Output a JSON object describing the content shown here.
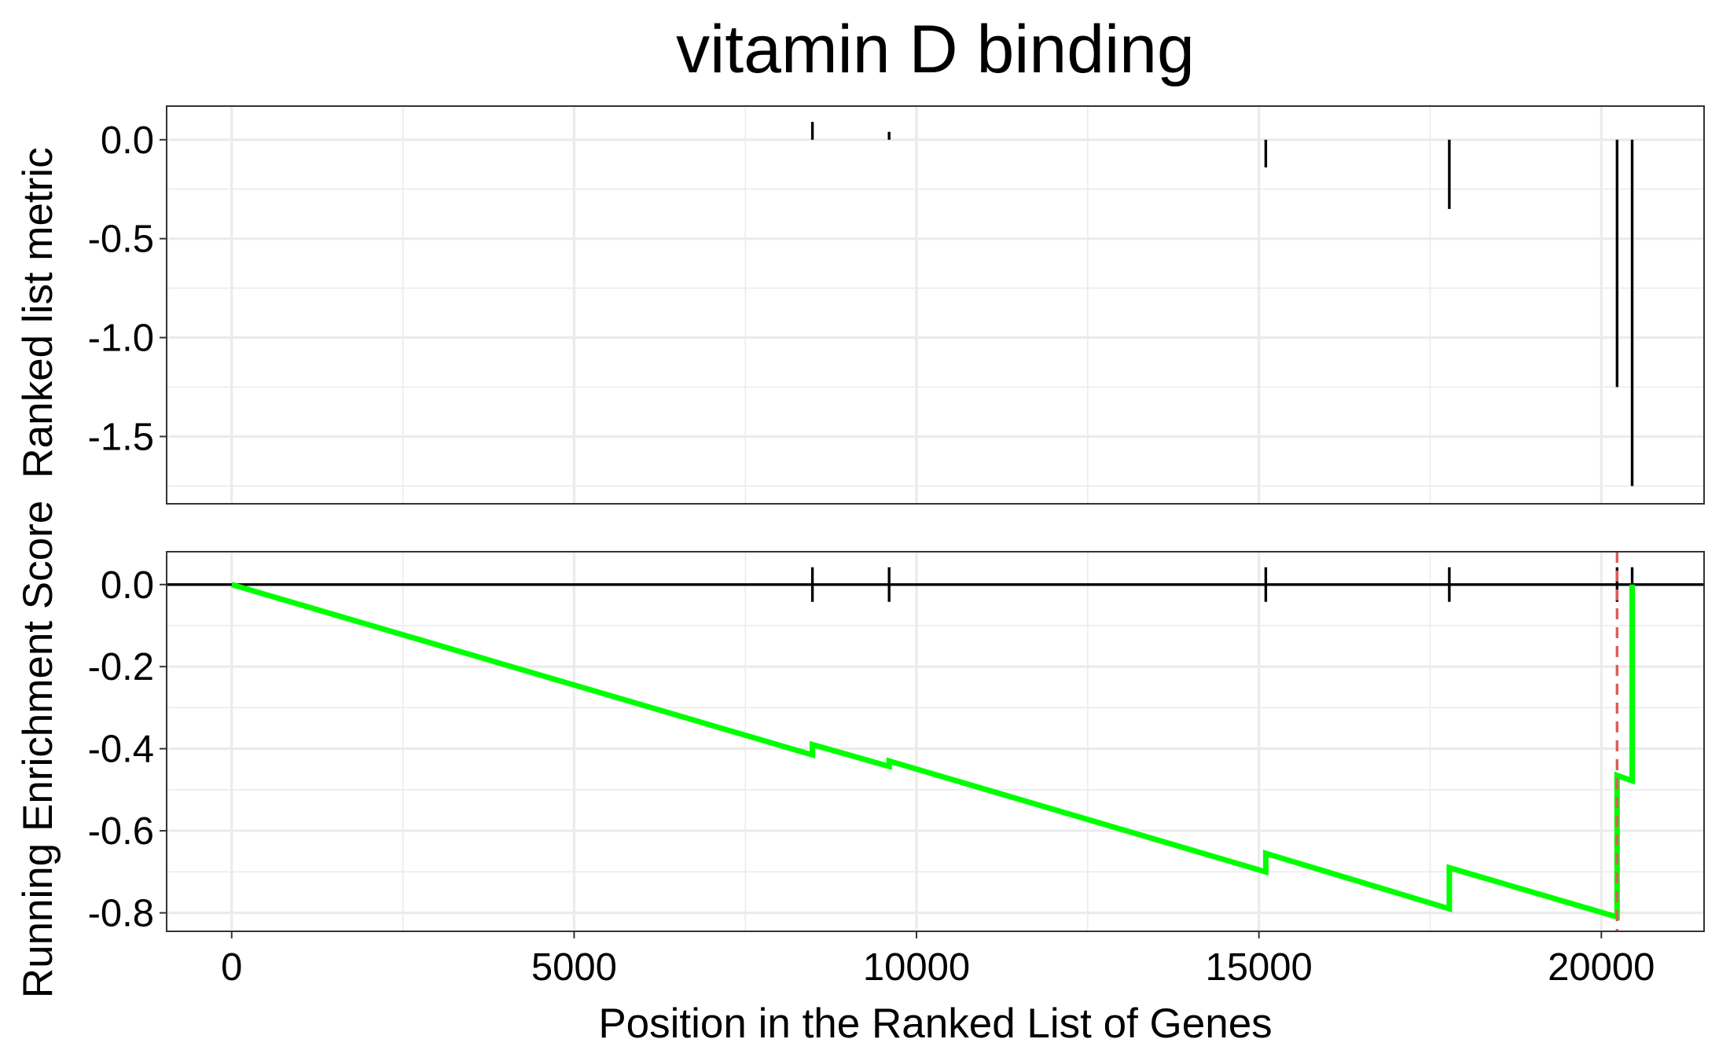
{
  "chart_data": {
    "title": "vitamin D binding",
    "xlabel": "Position in the Ranked List of Genes",
    "xlim": [
      -950,
      21500
    ],
    "xticks": [
      0,
      5000,
      10000,
      15000,
      20000
    ],
    "xtick_labels": [
      "0",
      "5000",
      "10000",
      "15000",
      "20000"
    ],
    "panels": [
      {
        "type": "bar",
        "ylabel": "Ranked list metric",
        "ylim": [
          -1.84,
          0.17
        ],
        "yticks": [
          0.0,
          -0.5,
          -1.0,
          -1.5
        ],
        "ytick_labels": [
          "0.0",
          "-0.5",
          "-1.0",
          "-1.5"
        ],
        "grid": true,
        "bars": [
          {
            "x": 8480,
            "value": 0.09
          },
          {
            "x": 9600,
            "value": 0.04
          },
          {
            "x": 15100,
            "value": -0.14
          },
          {
            "x": 17780,
            "value": -0.35
          },
          {
            "x": 20230,
            "value": -1.25
          },
          {
            "x": 20450,
            "value": -1.75
          }
        ]
      },
      {
        "type": "line",
        "ylabel": "Running Enrichment Score",
        "ylim": [
          -0.845,
          0.08
        ],
        "yticks": [
          0.0,
          -0.2,
          -0.4,
          -0.6,
          -0.8
        ],
        "ytick_labels": [
          "0.0",
          "-0.2",
          "-0.4",
          "-0.6",
          "-0.8"
        ],
        "grid": true,
        "line_color": "#00ff00",
        "zero_line_color": "#000000",
        "marker_color": "#000000",
        "max_deviation_color": "#e05a5a",
        "max_deviation_x": 20230,
        "hits": [
          8480,
          9600,
          15100,
          17780,
          20230,
          20450
        ],
        "series": {
          "x": [
            0,
            8480,
            8480,
            9600,
            9600,
            15100,
            15100,
            17780,
            17780,
            20230,
            20230,
            20450,
            20450
          ],
          "y": [
            0.0,
            -0.415,
            -0.39,
            -0.443,
            -0.43,
            -0.7,
            -0.655,
            -0.79,
            -0.69,
            -0.81,
            -0.465,
            -0.478,
            0.0
          ]
        }
      }
    ]
  }
}
